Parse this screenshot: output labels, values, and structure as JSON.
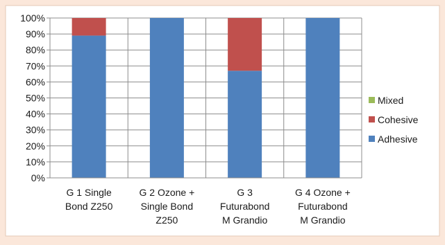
{
  "chart_data": {
    "type": "bar",
    "stacked": true,
    "percent": true,
    "categories": [
      [
        "G 1 Single",
        "Bond Z250"
      ],
      [
        "G 2 Ozone +",
        "Single Bond",
        "Z250"
      ],
      [
        "G 3",
        "Futurabond",
        "M Grandio"
      ],
      [
        "G 4 Ozone +",
        "Futurabond",
        "M Grandio"
      ]
    ],
    "series": [
      {
        "name": "Adhesive",
        "color": "#4f81bd",
        "values": [
          89,
          100,
          67,
          100
        ]
      },
      {
        "name": "Cohesive",
        "color": "#c0504d",
        "values": [
          11,
          0,
          33,
          0
        ]
      },
      {
        "name": "Mixed",
        "color": "#9bbb59",
        "values": [
          0,
          0,
          0,
          0
        ]
      }
    ],
    "ylim": [
      0,
      100
    ],
    "yticks": [
      "0%",
      "10%",
      "20%",
      "30%",
      "40%",
      "50%",
      "60%",
      "70%",
      "80%",
      "90%",
      "100%"
    ],
    "legend_position": "right",
    "legend_order": [
      "Mixed",
      "Cohesive",
      "Adhesive"
    ],
    "grid": true
  }
}
